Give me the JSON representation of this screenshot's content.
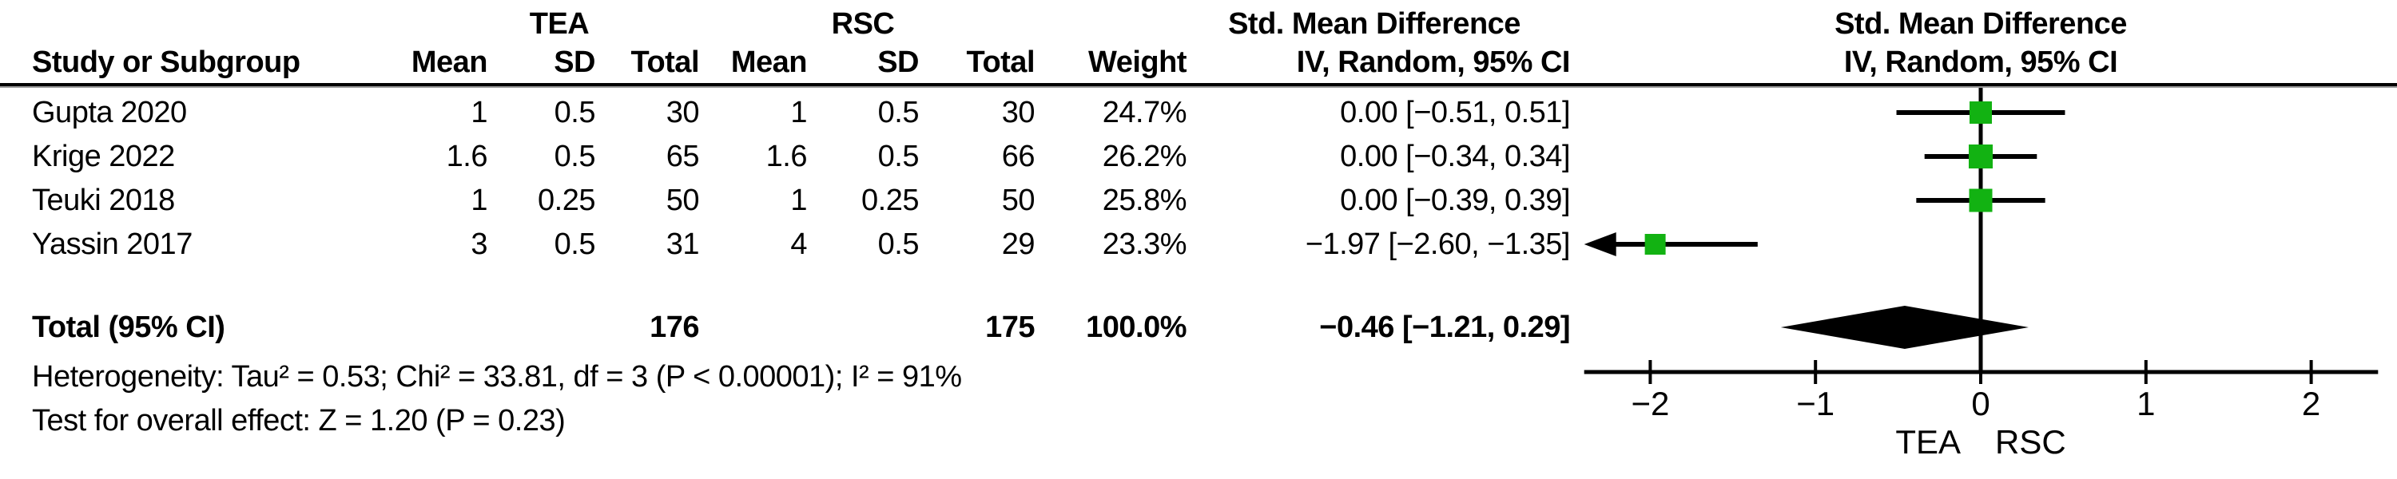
{
  "header": {
    "study": "Study or Subgroup",
    "tea": "TEA",
    "rsc": "RSC",
    "mean": "Mean",
    "sd": "SD",
    "total": "Total",
    "weight": "Weight",
    "smd1": "Std. Mean Difference",
    "smd2": "IV, Random, 95% CI"
  },
  "rows": [
    {
      "study": "Gupta 2020",
      "tea_mean": "1",
      "tea_sd": "0.5",
      "tea_total": "30",
      "rsc_mean": "1",
      "rsc_sd": "0.5",
      "rsc_total": "30",
      "weight": "24.7%",
      "ci": "0.00 [−0.51, 0.51]"
    },
    {
      "study": "Krige 2022",
      "tea_mean": "1.6",
      "tea_sd": "0.5",
      "tea_total": "65",
      "rsc_mean": "1.6",
      "rsc_sd": "0.5",
      "rsc_total": "66",
      "weight": "26.2%",
      "ci": "0.00 [−0.34, 0.34]"
    },
    {
      "study": "Teuki 2018",
      "tea_mean": "1",
      "tea_sd": "0.25",
      "tea_total": "50",
      "rsc_mean": "1",
      "rsc_sd": "0.25",
      "rsc_total": "50",
      "weight": "25.8%",
      "ci": "0.00 [−0.39, 0.39]"
    },
    {
      "study": "Yassin 2017",
      "tea_mean": "3",
      "tea_sd": "0.5",
      "tea_total": "31",
      "rsc_mean": "4",
      "rsc_sd": "0.5",
      "rsc_total": "29",
      "weight": "23.3%",
      "ci": "−1.97 [−2.60, −1.35]"
    }
  ],
  "total_row": {
    "label": "Total (95% CI)",
    "tea_total": "176",
    "rsc_total": "175",
    "weight": "100.0%",
    "ci": "−0.46 [−1.21, 0.29]"
  },
  "footnotes": {
    "heterogeneity": "Heterogeneity: Tau² = 0.53; Chi² = 33.81, df = 3 (P < 0.00001); I² = 91%",
    "overall_effect": "Test for overall effect: Z = 1.20 (P = 0.23)"
  },
  "chart_data": {
    "type": "forest",
    "title": "Std. Mean Difference, IV, Random, 95% CI",
    "x_ticks": [
      -2,
      -1,
      0,
      1,
      2
    ],
    "x_tick_labels": [
      "−2",
      "−1",
      "0",
      "1",
      "2"
    ],
    "x_range": [
      -2.4,
      2.4
    ],
    "axis_label_left": "TEA",
    "axis_label_right": "RSC",
    "marker_color": "#12B212",
    "line_color": "#000000",
    "studies": [
      {
        "name": "Gupta 2020",
        "smd": 0.0,
        "ci_low": -0.51,
        "ci_high": 0.51,
        "weight": 24.7
      },
      {
        "name": "Krige 2022",
        "smd": 0.0,
        "ci_low": -0.34,
        "ci_high": 0.34,
        "weight": 26.2
      },
      {
        "name": "Teuki 2018",
        "smd": 0.0,
        "ci_low": -0.39,
        "ci_high": 0.39,
        "weight": 25.8
      },
      {
        "name": "Yassin 2017",
        "smd": -1.97,
        "ci_low": -2.6,
        "ci_high": -1.35,
        "weight": 23.3
      }
    ],
    "total": {
      "smd": -0.46,
      "ci_low": -1.21,
      "ci_high": 0.29
    }
  }
}
